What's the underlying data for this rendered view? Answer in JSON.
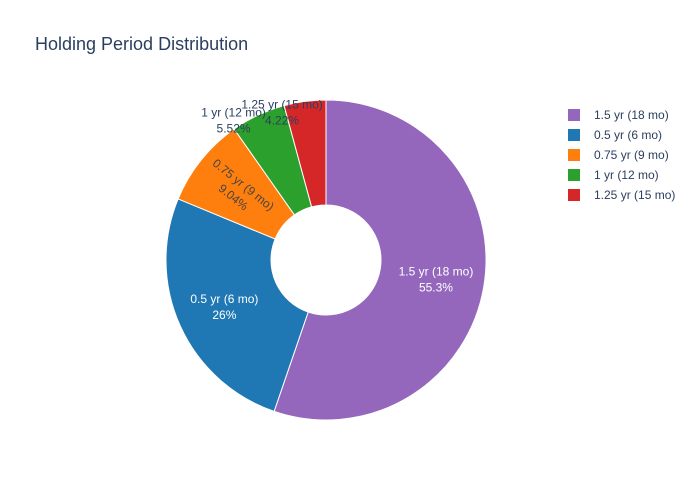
{
  "chart_data": {
    "type": "pie",
    "title": "Holding Period Distribution",
    "hole": true,
    "legend_position": "top-right",
    "slices": [
      {
        "label": "1.5 yr (18 mo)",
        "value": 55.3,
        "percent_label": "55.3%",
        "color": "#9467bd"
      },
      {
        "label": "0.5 yr (6 mo)",
        "value": 26,
        "percent_label": "26%",
        "color": "#1f77b4"
      },
      {
        "label": "0.75 yr (9 mo)",
        "value": 9.04,
        "percent_label": "9.04%",
        "color": "#ff7f0e"
      },
      {
        "label": "1 yr (12 mo)",
        "value": 5.52,
        "percent_label": "5.52%",
        "color": "#2ca02c"
      },
      {
        "label": "1.25 yr (15 mo)",
        "value": 4.22,
        "percent_label": "4.22%",
        "color": "#d62728"
      }
    ]
  }
}
